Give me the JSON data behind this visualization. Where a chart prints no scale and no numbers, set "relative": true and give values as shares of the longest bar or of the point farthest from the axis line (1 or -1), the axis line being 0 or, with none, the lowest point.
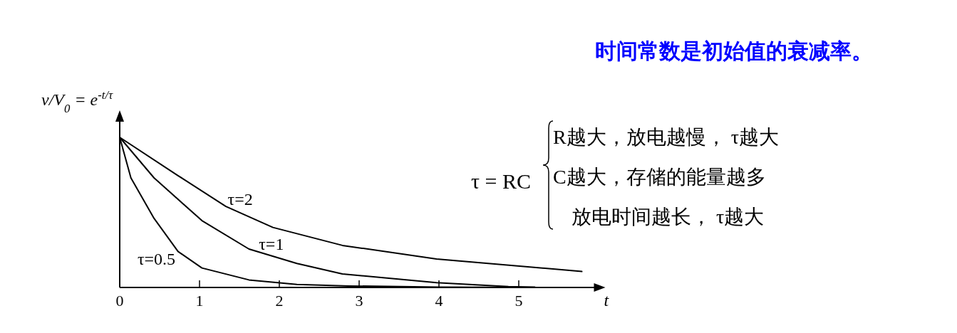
{
  "chart_data": {
    "type": "line",
    "title": "时间常数是初始值的衰减率。",
    "xlabel": "t",
    "ylabel": "v/V$_{0}$ = e$^{-t/τ}$",
    "relative": true,
    "xlim": [
      0,
      5.96
    ],
    "xticks": [
      0,
      1,
      2,
      3,
      4,
      5
    ],
    "tick_labels": "x",
    "grid": false,
    "marker": "none",
    "line_style": "solid",
    "series": [
      {
        "name": "τ=2",
        "color": "#000000",
        "x": [
          0,
          0.73,
          1.33,
          1.92,
          2.79,
          3.97,
          5.79
        ],
        "values": [
          1,
          0.745,
          0.54,
          0.4,
          0.28,
          0.19,
          0.106
        ]
      },
      {
        "name": "τ=1",
        "color": "#000000",
        "x": [
          0,
          0.43,
          1.03,
          1.62,
          2.22,
          2.79,
          3.97,
          4.87,
          5.2
        ],
        "values": [
          1,
          0.73,
          0.445,
          0.256,
          0.16,
          0.09,
          0.032,
          0.006,
          0.002
        ]
      },
      {
        "name": "τ=0.5",
        "color": "#000000",
        "x": [
          0,
          0.14,
          0.43,
          0.73,
          1.03,
          1.62,
          2.22,
          2.88,
          4,
          5.29
        ],
        "values": [
          1,
          0.73,
          0.46,
          0.24,
          0.13,
          0.05,
          0.02,
          0.01,
          0.003,
          0
        ]
      }
    ],
    "annotations": [
      "τ = RC",
      "R越大，放电越慢， τ越大",
      "C越大，存储的能量越多",
      "放电时间越长， τ越大"
    ]
  }
}
